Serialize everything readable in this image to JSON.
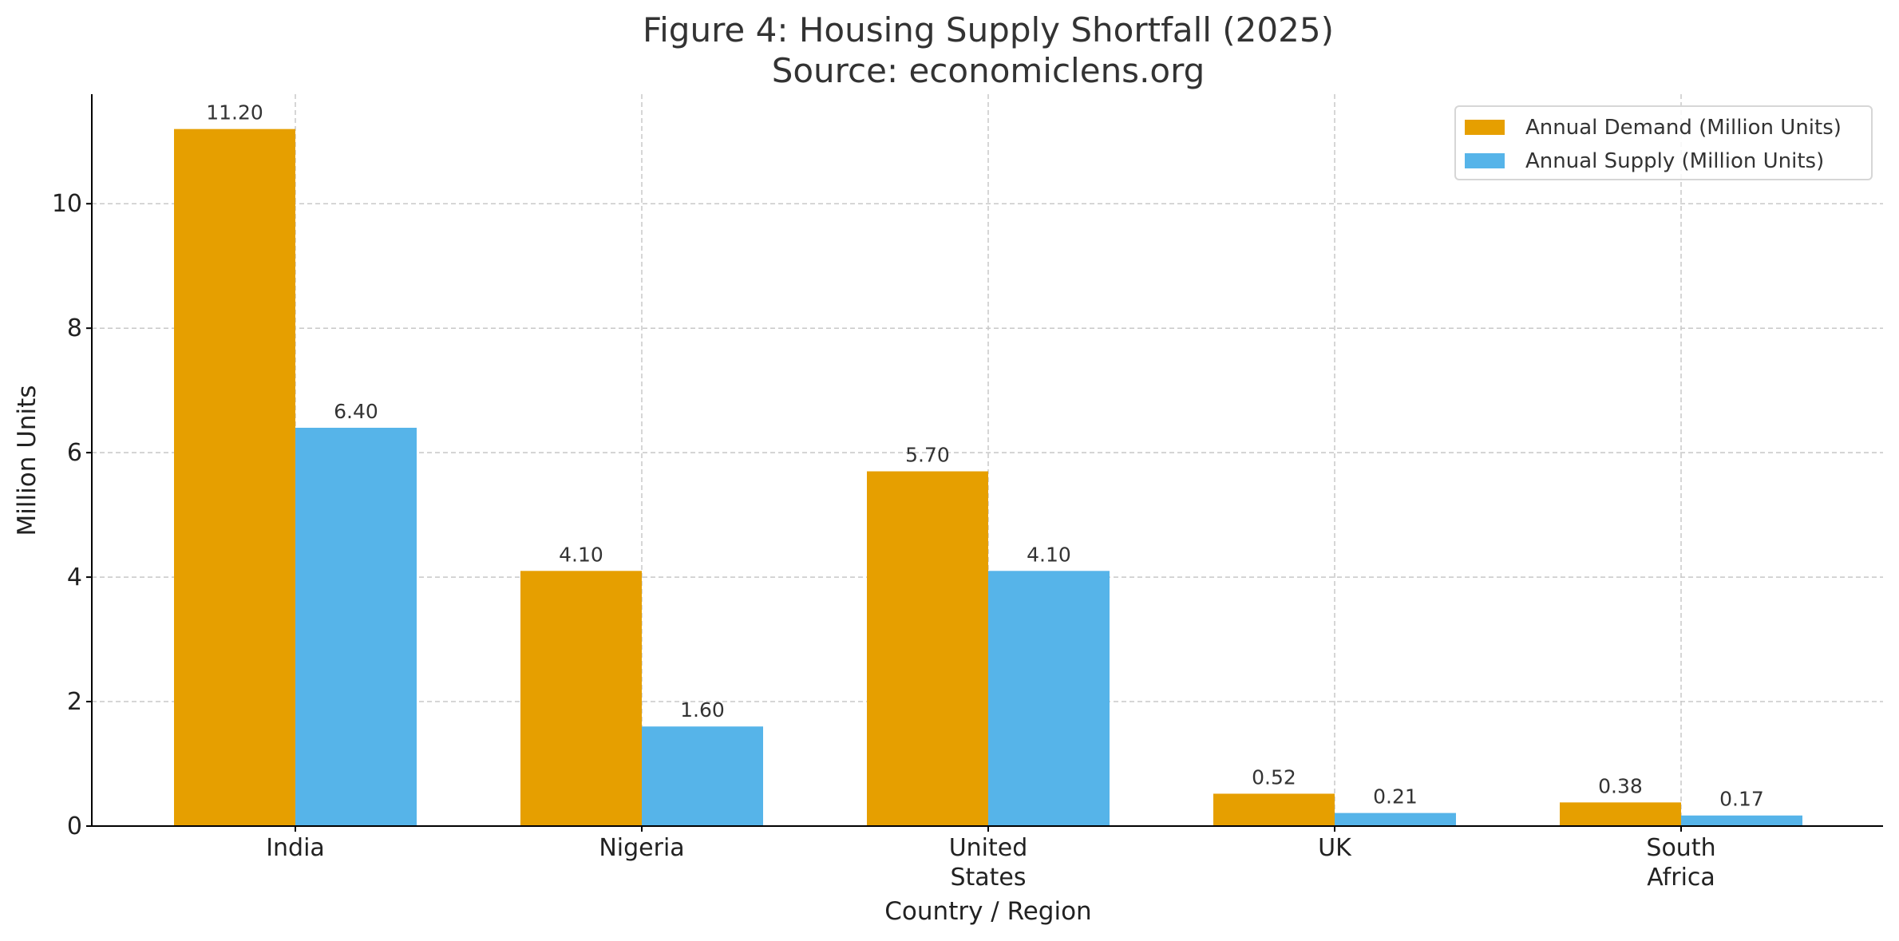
{
  "chart_data": {
    "type": "bar",
    "title": "Figure 4: Housing Supply Shortfall (2025)",
    "subtitle": "Source: economiclens.org",
    "xlabel": "Country / Region",
    "ylabel": "Million Units",
    "categories": [
      [
        "India"
      ],
      [
        "Nigeria"
      ],
      [
        "United",
        "States"
      ],
      [
        "UK"
      ],
      [
        "South",
        "Africa"
      ]
    ],
    "series": [
      {
        "name": "Annual Demand (Million Units)",
        "color": "#E69F00",
        "values": [
          11.2,
          4.1,
          5.7,
          0.52,
          0.38
        ],
        "labels": [
          "11.20",
          "4.10",
          "5.70",
          "0.52",
          "0.38"
        ]
      },
      {
        "name": "Annual Supply (Million Units)",
        "color": "#56B4E9",
        "values": [
          6.4,
          1.6,
          4.1,
          0.21,
          0.17
        ],
        "labels": [
          "6.40",
          "1.60",
          "4.10",
          "0.21",
          "0.17"
        ]
      }
    ],
    "ylim": [
      0,
      11.76
    ],
    "yticks": [
      0,
      2,
      4,
      6,
      8,
      10
    ],
    "grid": true,
    "legend": "top-right"
  }
}
